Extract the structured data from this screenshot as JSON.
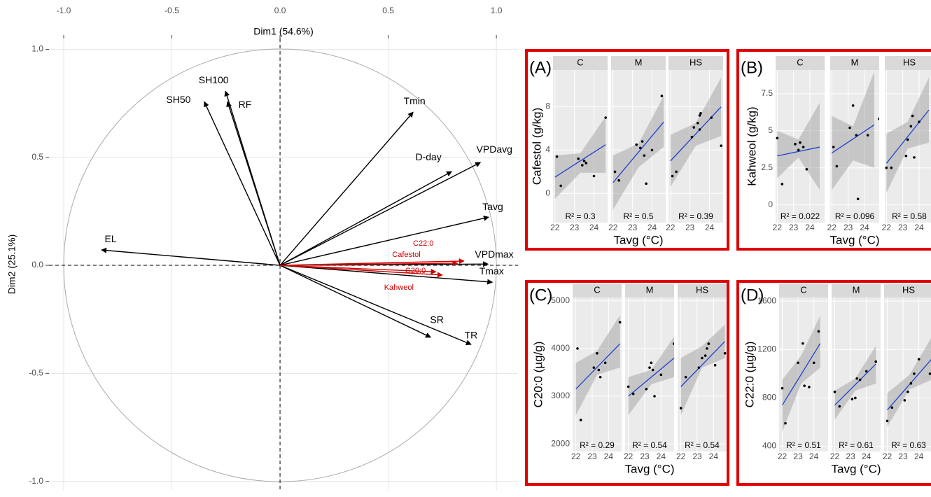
{
  "chart_data": [
    {
      "type": "biplot",
      "x_label": "Dim1 (54.6%)",
      "y_label": "Dim2 (25.1%)",
      "xlim": [
        -1.068,
        1.1
      ],
      "ylim": [
        -1.04,
        1.05
      ],
      "xticks": [
        {
          "value": -1,
          "label": "-1.0"
        },
        -0.5,
        {
          "value": 0,
          "label": "0.0"
        },
        0.5,
        {
          "value": 1,
          "label": "1.0"
        }
      ],
      "yticks": [
        {
          "value": -1,
          "label": "-1.0"
        },
        -0.5,
        {
          "value": 0,
          "label": "0.0"
        },
        0.5,
        {
          "value": 1,
          "label": "1.0"
        }
      ],
      "grid": true,
      "variables": [
        {
          "name": "EL",
          "x": -0.825,
          "y": 0.071,
          "color": "#000000"
        },
        {
          "name": "SH50",
          "x": -0.35,
          "y": 0.757,
          "color": "#000000"
        },
        {
          "name": "SH100",
          "x": -0.252,
          "y": 0.806,
          "color": "#000000"
        },
        {
          "name": "RF",
          "x": -0.243,
          "y": 0.757,
          "color": "#000000"
        },
        {
          "name": "Tmin",
          "x": 0.615,
          "y": 0.709,
          "color": "#000000"
        },
        {
          "name": "D-day",
          "x": 0.793,
          "y": 0.434,
          "color": "#000000"
        },
        {
          "name": "VPDavg",
          "x": 0.926,
          "y": 0.476,
          "color": "#000000"
        },
        {
          "name": "Tavg",
          "x": 0.964,
          "y": 0.223,
          "color": "#000000"
        },
        {
          "name": "VPDmax",
          "x": 0.961,
          "y": 0.006,
          "color": "#000000"
        },
        {
          "name": "Tmax",
          "x": 0.981,
          "y": -0.078,
          "color": "#000000"
        },
        {
          "name": "SR",
          "x": 0.696,
          "y": -0.333,
          "color": "#000000"
        },
        {
          "name": "TR",
          "x": 0.883,
          "y": -0.366,
          "color": "#000000"
        },
        {
          "name": "Cafestol",
          "x": 0.82,
          "y": 0.01,
          "color": "#cc0000"
        },
        {
          "name": "C22:0",
          "x": 0.85,
          "y": 0.02,
          "color": "#cc0000"
        },
        {
          "name": "C20:0",
          "x": 0.72,
          "y": -0.03,
          "color": "#cc0000"
        },
        {
          "name": "Kahweol",
          "x": 0.75,
          "y": -0.045,
          "color": "#cc0000"
        }
      ]
    },
    {
      "type": "facet_scatter",
      "panel_label": "(A)",
      "y_label": "Cafestol (g/kg)",
      "x_label": "Tavg (°C)",
      "xlim": [
        21.9,
        24.7
      ],
      "xticks": [
        22,
        23,
        24
      ],
      "ylim": [
        -2.7,
        11.4
      ],
      "yticks": [
        0,
        4,
        8
      ],
      "color": "#2040d0",
      "facets": [
        {
          "name": "C",
          "x": [
            22.1,
            22.3,
            23.2,
            23.4,
            23.5,
            23.6,
            24.0,
            24.6
          ],
          "y": [
            3.4,
            0.7,
            3.2,
            2.6,
            3.0,
            2.8,
            1.6,
            7.0
          ],
          "fit": {
            "x": [
              22.0,
              24.6
            ],
            "y": [
              1.5,
              4.5
            ]
          },
          "band": {
            "x": [
              22.0,
              23.3,
              24.6
            ],
            "lower": [
              -0.5,
              1.9,
              1.9
            ],
            "upper": [
              3.5,
              3.7,
              7.1
            ]
          },
          "r2_label": "R² = 0.3"
        },
        {
          "name": "M",
          "x": [
            22.1,
            22.3,
            23.2,
            23.4,
            23.5,
            23.6,
            23.7,
            24.0,
            24.5
          ],
          "y": [
            2.0,
            1.2,
            4.5,
            4.2,
            4.8,
            3.5,
            0.9,
            4.0,
            9.0
          ],
          "fit": {
            "x": [
              22.0,
              24.6
            ],
            "y": [
              1.0,
              6.6
            ]
          },
          "band": {
            "x": [
              22.0,
              23.3,
              24.6
            ],
            "lower": [
              -1.5,
              2.4,
              4.3
            ],
            "upper": [
              3.5,
              4.6,
              9.0
            ]
          },
          "r2_label": "R² = 0.5"
        },
        {
          "name": "HS",
          "x": [
            22.1,
            22.3,
            23.1,
            23.2,
            23.4,
            23.5,
            23.55,
            23.5,
            24.1,
            24.6
          ],
          "y": [
            1.6,
            2.0,
            5.2,
            6.1,
            6.5,
            7.2,
            7.4,
            5.9,
            7.0,
            4.4
          ],
          "fit": {
            "x": [
              22.0,
              24.6
            ],
            "y": [
              3.0,
              8.0
            ]
          },
          "band": {
            "x": [
              22.0,
              23.3,
              24.6
            ],
            "lower": [
              0.6,
              4.4,
              5.3
            ],
            "upper": [
              5.4,
              6.5,
              10.7
            ]
          },
          "r2_label": "R² = 0.39"
        }
      ]
    },
    {
      "type": "facet_scatter",
      "panel_label": "(B)",
      "y_label": "Kahweol (g/kg)",
      "x_label": "Tavg (°C)",
      "xlim": [
        21.9,
        24.9
      ],
      "xticks": [
        22,
        23,
        24
      ],
      "ylim": [
        -1.2,
        9.1
      ],
      "yticks": [
        0.0,
        2.5,
        5.0,
        7.5
      ],
      "color": "#2040d0",
      "facets": [
        {
          "name": "C",
          "x": [
            22.0,
            22.3,
            23.1,
            23.3,
            23.4,
            23.6,
            23.8
          ],
          "y": [
            4.5,
            1.4,
            4.1,
            3.7,
            4.2,
            3.9,
            2.4
          ],
          "fit": {
            "x": [
              22.0,
              24.6
            ],
            "y": [
              3.3,
              3.9
            ]
          },
          "band": {
            "x": [
              22.0,
              23.3,
              24.6
            ],
            "lower": [
              1.8,
              3.2,
              1.0
            ],
            "upper": [
              5.0,
              4.4,
              6.9
            ]
          },
          "r2_label": "R² = 0.022"
        },
        {
          "name": "M",
          "x": [
            22.1,
            22.3,
            23.1,
            23.3,
            23.5,
            23.6,
            24.2,
            24.9
          ],
          "y": [
            3.9,
            2.6,
            5.2,
            6.7,
            4.7,
            0.4,
            4.7,
            5.8
          ],
          "fit": {
            "x": [
              22.0,
              24.6
            ],
            "y": [
              3.5,
              5.4
            ]
          },
          "band": {
            "x": [
              22.0,
              23.3,
              24.6
            ],
            "lower": [
              1.0,
              3.0,
              2.5
            ],
            "upper": [
              6.0,
              5.3,
              9.0
            ]
          },
          "r2_label": "R² = 0.096"
        },
        {
          "name": "HS",
          "x": [
            22.0,
            22.3,
            23.2,
            23.3,
            23.5,
            23.6,
            23.7,
            24.0,
            24.8
          ],
          "y": [
            2.5,
            2.5,
            3.3,
            4.4,
            5.3,
            6.0,
            3.2,
            5.6,
            5.5
          ],
          "fit": {
            "x": [
              22.0,
              24.6
            ],
            "y": [
              2.8,
              6.4
            ]
          },
          "band": {
            "x": [
              22.0,
              23.3,
              24.6
            ],
            "lower": [
              0.8,
              3.8,
              4.2
            ],
            "upper": [
              4.8,
              5.6,
              8.6
            ]
          },
          "r2_label": "R² = 0.58"
        }
      ]
    },
    {
      "type": "facet_scatter",
      "panel_label": "(C)",
      "y_label": "C20:0 (µg/g)",
      "x_label": "Tavg (°C)",
      "xlim": [
        21.8,
        24.8
      ],
      "xticks": [
        22,
        23,
        24
      ],
      "ylim": [
        1840,
        5070
      ],
      "yticks": [
        2000,
        3000,
        4000,
        5000
      ],
      "color": "#2040d0",
      "facets": [
        {
          "name": "C",
          "x": [
            22.1,
            22.3,
            23.1,
            23.3,
            23.4,
            23.5,
            23.8,
            24.7
          ],
          "y": [
            4000,
            2500,
            3600,
            3900,
            3550,
            3400,
            3700,
            4550
          ],
          "fit": {
            "x": [
              22.0,
              24.7
            ],
            "y": [
              3150,
              4100
            ]
          },
          "band": {
            "x": [
              22.0,
              23.3,
              24.7
            ],
            "lower": [
              2600,
              3450,
              3600
            ],
            "upper": [
              3700,
              3950,
              4700
            ]
          },
          "r2_label": "R² = 0.29"
        },
        {
          "name": "M",
          "x": [
            22.0,
            22.3,
            23.1,
            23.3,
            23.4,
            23.5,
            23.6,
            24.0,
            24.8
          ],
          "y": [
            3200,
            3050,
            3150,
            3600,
            3700,
            3550,
            3000,
            3450,
            4100
          ],
          "fit": {
            "x": [
              22.0,
              24.8
            ],
            "y": [
              3000,
              3800
            ]
          },
          "band": {
            "x": [
              22.0,
              23.4,
              24.8
            ],
            "lower": [
              2600,
              3250,
              3400
            ],
            "upper": [
              3400,
              3550,
              4250
            ]
          },
          "r2_label": "R² = 0.54"
        },
        {
          "name": "HS",
          "x": [
            22.0,
            22.3,
            23.1,
            23.3,
            23.5,
            23.6,
            23.7,
            24.1,
            24.7
          ],
          "y": [
            2750,
            3400,
            3600,
            3800,
            3850,
            4000,
            4100,
            3650,
            3900
          ],
          "fit": {
            "x": [
              22.0,
              24.7
            ],
            "y": [
              3200,
              4150
            ]
          },
          "band": {
            "x": [
              22.0,
              23.3,
              24.7
            ],
            "lower": [
              2600,
              3600,
              3800
            ],
            "upper": [
              3800,
              4050,
              4500
            ]
          },
          "r2_label": "R² = 0.54"
        }
      ]
    },
    {
      "type": "facet_scatter",
      "panel_label": "(D)",
      "y_label": "C22:0 (µg/g)",
      "x_label": "Tavg (°C)",
      "xlim": [
        21.8,
        24.9
      ],
      "xticks": [
        22,
        23,
        24
      ],
      "ylim": [
        357,
        1630
      ],
      "yticks": [
        400,
        800,
        1200,
        1600
      ],
      "color": "#2040d0",
      "facets": [
        {
          "name": "C",
          "x": [
            22.0,
            22.2,
            23.0,
            23.3,
            23.4,
            23.7,
            24.0,
            24.3
          ],
          "y": [
            880,
            590,
            1090,
            1250,
            900,
            890,
            1090,
            1350
          ],
          "fit": {
            "x": [
              22.0,
              24.4
            ],
            "y": [
              740,
              1250
            ]
          },
          "band": {
            "x": [
              22.0,
              23.2,
              24.4
            ],
            "lower": [
              520,
              920,
              1050
            ],
            "upper": [
              950,
              1150,
              1480
            ]
          },
          "r2_label": "R² = 0.51"
        },
        {
          "name": "M",
          "x": [
            22.0,
            22.3,
            23.1,
            23.3,
            23.4,
            23.6,
            24.0,
            24.6
          ],
          "y": [
            850,
            730,
            790,
            800,
            960,
            950,
            1020,
            1100
          ],
          "fit": {
            "x": [
              22.0,
              24.6
            ],
            "y": [
              740,
              1080
            ]
          },
          "band": {
            "x": [
              22.0,
              23.3,
              24.6
            ],
            "lower": [
              620,
              860,
              920
            ],
            "upper": [
              860,
              960,
              1230
            ]
          },
          "r2_label": "R² = 0.61"
        },
        {
          "name": "HS",
          "x": [
            22.0,
            22.3,
            23.1,
            23.3,
            23.5,
            23.7,
            24.0,
            24.7
          ],
          "y": [
            610,
            720,
            780,
            850,
            920,
            1000,
            1120,
            1000
          ],
          "fit": {
            "x": [
              22.0,
              24.8
            ],
            "y": [
              700,
              1120
            ]
          },
          "band": {
            "x": [
              22.0,
              23.4,
              24.8
            ],
            "lower": [
              560,
              870,
              950
            ],
            "upper": [
              840,
              990,
              1300
            ]
          },
          "r2_label": "R² = 0.63"
        }
      ]
    }
  ]
}
